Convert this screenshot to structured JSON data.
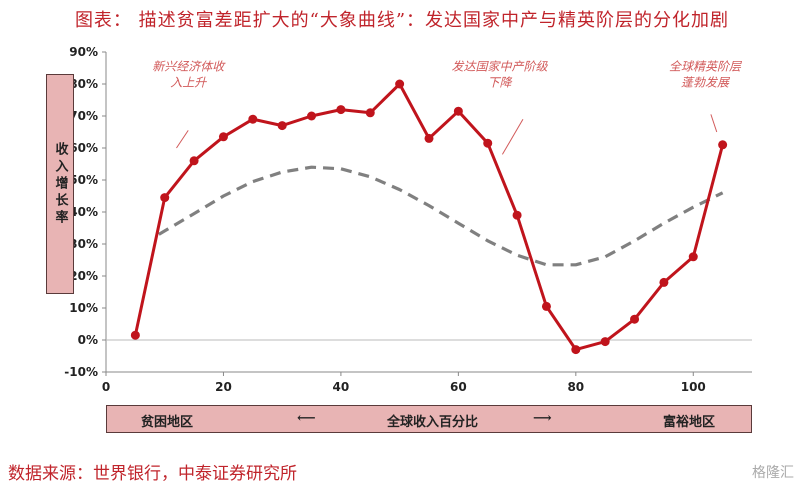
{
  "title": "图表： 描述贫富差距扩大的“大象曲线”：发达国家中产与精英阶层的分化加剧",
  "source": "数据来源：世界银行，中泰证券研究所",
  "watermark": "格隆汇",
  "chart_data": {
    "type": "line",
    "ylabel": "收入增长率",
    "ylim": [
      -10,
      90
    ],
    "xlim": [
      0,
      110
    ],
    "yticks": [
      -10,
      0,
      10,
      20,
      30,
      40,
      50,
      60,
      70,
      80,
      90
    ],
    "yticks_labels": [
      "-10%",
      "0%",
      "10%",
      "20%",
      "30%",
      "40%",
      "50%",
      "60%",
      "70%",
      "80%",
      "90%"
    ],
    "xticks": [
      0,
      20,
      40,
      60,
      80,
      100
    ],
    "xticks_labels": [
      "0",
      "20",
      "40",
      "60",
      "80",
      "100"
    ],
    "xband": {
      "left": "贫困地区",
      "center": "全球收入百分比",
      "right": "富裕地区",
      "left_arrow": "⟵",
      "right_arrow": "⟶"
    },
    "series": [
      {
        "style": "solid-red-markers",
        "color": "#c0141c",
        "x": [
          5,
          10,
          15,
          20,
          25,
          30,
          35,
          40,
          45,
          50,
          55,
          60,
          65,
          70,
          75,
          80,
          85,
          90,
          95,
          100,
          105
        ],
        "y": [
          1.5,
          44.5,
          56,
          63.5,
          69,
          67,
          70,
          72,
          71,
          80,
          63,
          71.5,
          61.5,
          39,
          10.5,
          -3,
          -0.5,
          6.5,
          18,
          26,
          61
        ]
      },
      {
        "style": "dashed-gray",
        "color": "#808080",
        "x": [
          9,
          15,
          20,
          25,
          30,
          35,
          40,
          45,
          50,
          55,
          60,
          65,
          70,
          75,
          80,
          85,
          90,
          95,
          100,
          105
        ],
        "y": [
          33,
          39.5,
          45,
          49.5,
          52.5,
          54,
          53.5,
          51,
          47,
          42,
          36.5,
          31,
          26.5,
          23.5,
          23.5,
          26,
          31,
          36.5,
          41.5,
          46
        ]
      }
    ],
    "annotations": [
      {
        "text": [
          "新兴经济体收",
          "入上升"
        ],
        "x": 14,
        "y": 78
      },
      {
        "text": [
          "发达国家中产阶级",
          "下降"
        ],
        "x": 67,
        "y": 78
      },
      {
        "text": [
          "全球精英阶层",
          "蓬勃发展"
        ],
        "x": 102,
        "y": 78
      }
    ],
    "grid": false
  }
}
